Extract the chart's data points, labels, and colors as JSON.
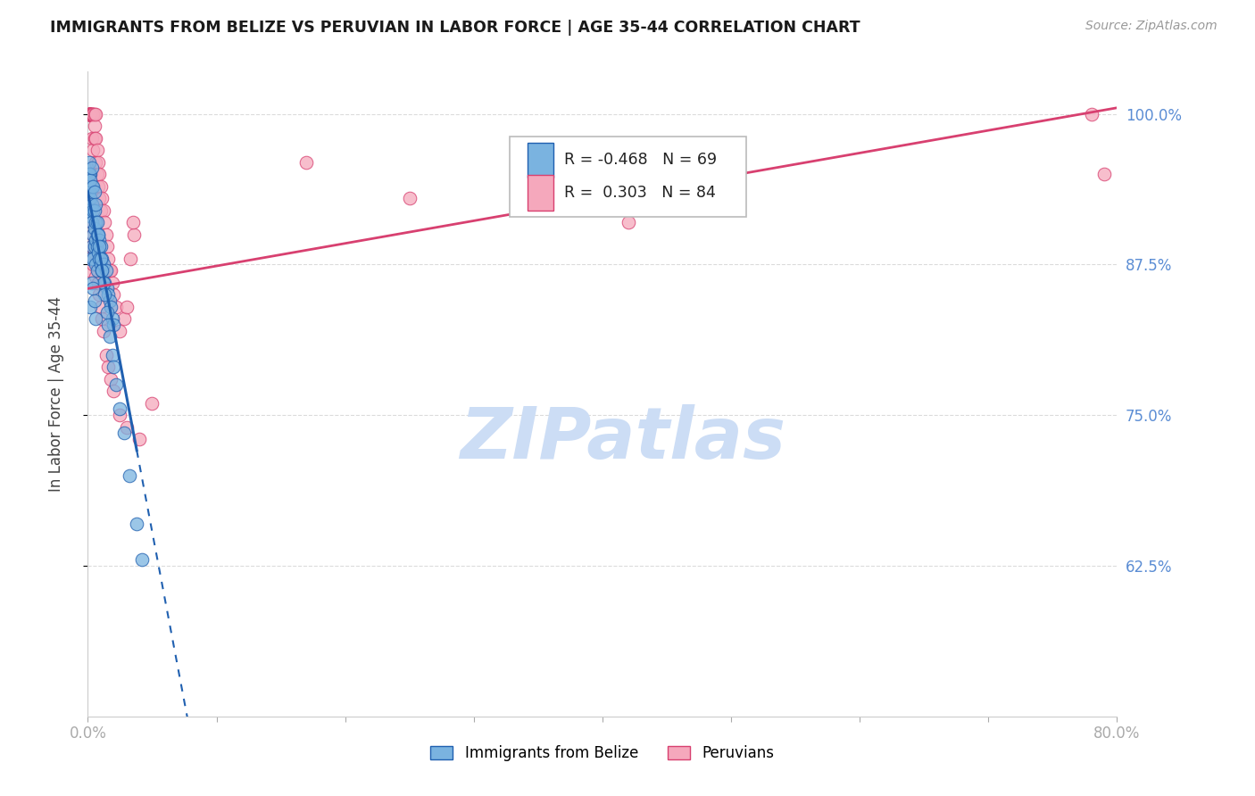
{
  "title": "IMMIGRANTS FROM BELIZE VS PERUVIAN IN LABOR FORCE | AGE 35-44 CORRELATION CHART",
  "source": "Source: ZipAtlas.com",
  "ylabel": "In Labor Force | Age 35-44",
  "legend_belize": "Immigrants from Belize",
  "legend_peruvians": "Peruvians",
  "R_belize": -0.468,
  "N_belize": 69,
  "R_peruvians": 0.303,
  "N_peruvians": 84,
  "xlim": [
    0.0,
    0.8
  ],
  "ylim": [
    0.5,
    1.035
  ],
  "yticks": [
    0.625,
    0.75,
    0.875,
    1.0
  ],
  "ytick_labels": [
    "62.5%",
    "75.0%",
    "87.5%",
    "100.0%"
  ],
  "xticks": [
    0.0,
    0.1,
    0.2,
    0.3,
    0.4,
    0.5,
    0.6,
    0.7,
    0.8
  ],
  "xtick_labels": [
    "0.0%",
    "",
    "",
    "",
    "",
    "",
    "",
    "",
    "80.0%"
  ],
  "color_belize": "#7ab3e0",
  "color_peruvian": "#f5a8bc",
  "trend_color_belize": "#2060b0",
  "trend_color_peruvian": "#d84070",
  "watermark": "ZIPatlas",
  "watermark_color": "#ccddf5",
  "tick_color": "#5b8dd4",
  "grid_color": "#cccccc",
  "belize_trend_x0": 0.0,
  "belize_trend_y0": 0.935,
  "belize_trend_x1": 0.055,
  "belize_trend_y1": 0.625,
  "belize_trend_solid_end_x": 0.038,
  "belize_trend_dashed_end_x": 0.16,
  "belize_trend_dashed_end_y": 0.5,
  "peruvian_trend_x0": 0.0,
  "peruvian_trend_y0": 0.855,
  "peruvian_trend_x1": 0.8,
  "peruvian_trend_y1": 1.005,
  "belize_scatter_x": [
    0.001,
    0.001,
    0.001,
    0.002,
    0.002,
    0.002,
    0.002,
    0.003,
    0.003,
    0.003,
    0.003,
    0.004,
    0.004,
    0.004,
    0.005,
    0.005,
    0.005,
    0.006,
    0.006,
    0.006,
    0.007,
    0.007,
    0.007,
    0.008,
    0.008,
    0.009,
    0.009,
    0.01,
    0.01,
    0.011,
    0.011,
    0.012,
    0.013,
    0.014,
    0.015,
    0.016,
    0.017,
    0.018,
    0.019,
    0.02,
    0.001,
    0.002,
    0.003,
    0.004,
    0.005,
    0.006,
    0.007,
    0.008,
    0.009,
    0.01,
    0.011,
    0.012,
    0.013,
    0.015,
    0.016,
    0.017,
    0.019,
    0.02,
    0.022,
    0.025,
    0.028,
    0.032,
    0.038,
    0.042,
    0.002,
    0.003,
    0.004,
    0.005,
    0.006
  ],
  "belize_scatter_y": [
    0.935,
    0.92,
    0.96,
    0.915,
    0.93,
    0.95,
    0.88,
    0.925,
    0.91,
    0.89,
    0.94,
    0.9,
    0.92,
    0.88,
    0.905,
    0.89,
    0.92,
    0.895,
    0.91,
    0.875,
    0.9,
    0.89,
    0.87,
    0.885,
    0.9,
    0.88,
    0.895,
    0.875,
    0.89,
    0.87,
    0.88,
    0.875,
    0.86,
    0.87,
    0.855,
    0.85,
    0.845,
    0.84,
    0.83,
    0.825,
    0.95,
    0.945,
    0.955,
    0.94,
    0.935,
    0.925,
    0.91,
    0.9,
    0.89,
    0.88,
    0.87,
    0.86,
    0.85,
    0.835,
    0.825,
    0.815,
    0.8,
    0.79,
    0.775,
    0.755,
    0.735,
    0.7,
    0.66,
    0.63,
    0.84,
    0.86,
    0.855,
    0.845,
    0.83
  ],
  "peruvian_scatter_x": [
    0.001,
    0.001,
    0.001,
    0.001,
    0.001,
    0.001,
    0.001,
    0.001,
    0.002,
    0.002,
    0.002,
    0.002,
    0.002,
    0.003,
    0.003,
    0.003,
    0.003,
    0.004,
    0.004,
    0.004,
    0.005,
    0.005,
    0.005,
    0.006,
    0.006,
    0.006,
    0.007,
    0.007,
    0.008,
    0.008,
    0.009,
    0.009,
    0.01,
    0.01,
    0.011,
    0.012,
    0.013,
    0.014,
    0.015,
    0.016,
    0.017,
    0.018,
    0.019,
    0.02,
    0.022,
    0.025,
    0.028,
    0.03,
    0.033,
    0.036,
    0.001,
    0.002,
    0.003,
    0.004,
    0.005,
    0.006,
    0.007,
    0.008,
    0.009,
    0.01,
    0.011,
    0.012,
    0.014,
    0.016,
    0.018,
    0.02,
    0.025,
    0.03,
    0.04,
    0.05,
    0.001,
    0.002,
    0.003,
    0.004,
    0.005,
    0.006,
    0.007,
    0.008,
    0.035,
    0.17,
    0.25,
    0.42,
    0.78,
    0.79
  ],
  "peruvian_scatter_y": [
    1.0,
    1.0,
    1.0,
    1.0,
    1.0,
    1.0,
    1.0,
    1.0,
    1.0,
    1.0,
    1.0,
    1.0,
    1.0,
    1.0,
    1.0,
    1.0,
    0.98,
    1.0,
    1.0,
    0.97,
    1.0,
    0.99,
    0.98,
    1.0,
    0.98,
    0.96,
    0.97,
    0.95,
    0.96,
    0.94,
    0.95,
    0.93,
    0.94,
    0.92,
    0.93,
    0.92,
    0.91,
    0.9,
    0.89,
    0.88,
    0.87,
    0.87,
    0.86,
    0.85,
    0.84,
    0.82,
    0.83,
    0.84,
    0.88,
    0.9,
    0.95,
    0.93,
    0.91,
    0.9,
    0.89,
    0.88,
    0.87,
    0.86,
    0.85,
    0.84,
    0.83,
    0.82,
    0.8,
    0.79,
    0.78,
    0.77,
    0.75,
    0.74,
    0.73,
    0.76,
    0.87,
    0.88,
    0.89,
    0.875,
    0.885,
    0.865,
    0.875,
    0.86,
    0.91,
    0.96,
    0.93,
    0.91,
    1.0,
    0.95
  ]
}
